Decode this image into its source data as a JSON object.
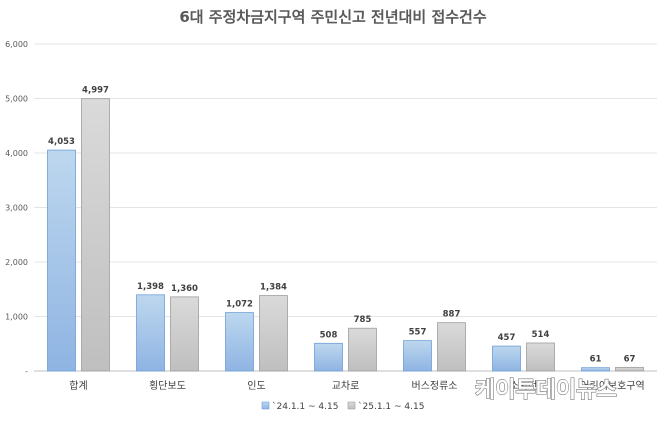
{
  "chart_data": {
    "type": "bar",
    "title": "6대 주정차금지구역 주민신고 전년대비 접수건수",
    "categories": [
      "합계",
      "횡단보도",
      "인도",
      "교차로",
      "버스정류소",
      "소화전",
      "어린이보호구역"
    ],
    "series": [
      {
        "name": "`24.1.1 ~ 4.15",
        "values": [
          4053,
          1398,
          1072,
          508,
          557,
          457,
          61
        ]
      },
      {
        "name": "`25.1.1 ~ 4.15",
        "values": [
          4997,
          1360,
          1384,
          785,
          887,
          514,
          67
        ]
      }
    ],
    "y_ticks": [
      "-",
      "1,000",
      "2,000",
      "3,000",
      "4,000",
      "5,000",
      "6,000"
    ],
    "ylim": [
      0,
      6000
    ],
    "grid": true,
    "legend_position": "bottom",
    "colors": {
      "series1": "#9DC3E6",
      "series2": "#C9C9C9"
    }
  },
  "watermark": "케이투데이뉴스"
}
